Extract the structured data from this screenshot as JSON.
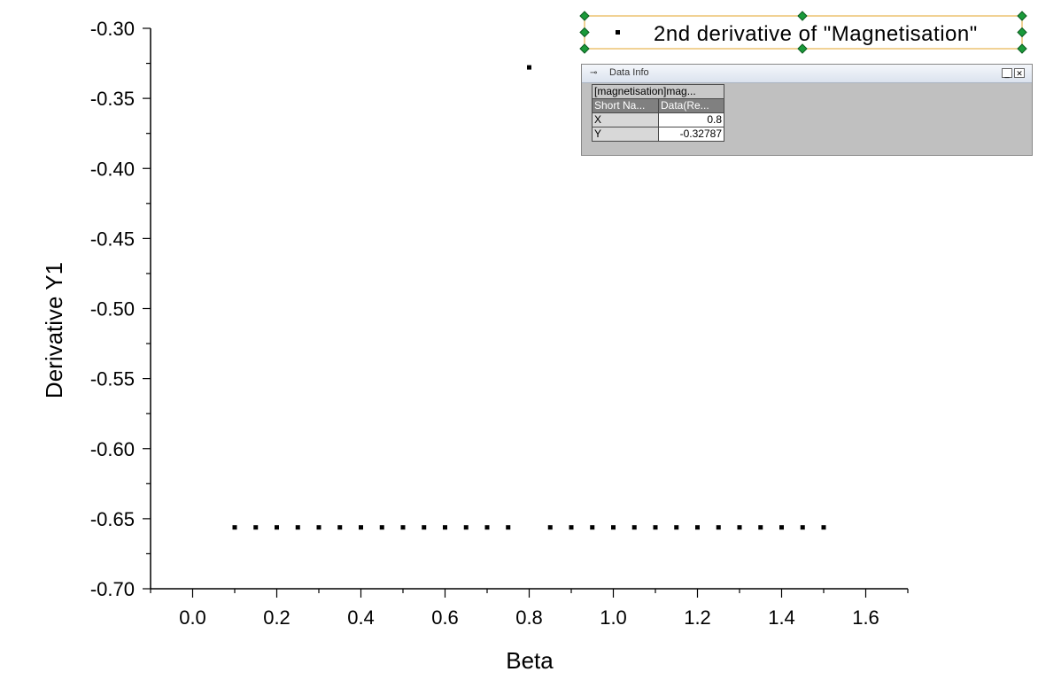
{
  "chart_data": {
    "type": "scatter",
    "xlabel": "Beta",
    "ylabel": "Derivative Y1",
    "xlim": [
      -0.1,
      1.7
    ],
    "ylim": [
      -0.7,
      -0.3
    ],
    "xticks": [
      "0.0",
      "0.2",
      "0.4",
      "0.6",
      "0.8",
      "1.0",
      "1.2",
      "1.4",
      "1.6"
    ],
    "yticks": [
      "-0.30",
      "-0.35",
      "-0.40",
      "-0.45",
      "-0.50",
      "-0.55",
      "-0.60",
      "-0.65",
      "-0.70"
    ],
    "series": [
      {
        "name": "2nd derivative of \"Magnetisation\"",
        "color": "#000000",
        "x": [
          0.1,
          0.15,
          0.2,
          0.25,
          0.3,
          0.35,
          0.4,
          0.45,
          0.5,
          0.55,
          0.6,
          0.65,
          0.7,
          0.75,
          0.8,
          0.85,
          0.9,
          0.95,
          1.0,
          1.05,
          1.1,
          1.15,
          1.2,
          1.25,
          1.3,
          1.35,
          1.4,
          1.45,
          1.5
        ],
        "y": [
          -0.6562,
          -0.6562,
          -0.6562,
          -0.6562,
          -0.6562,
          -0.6562,
          -0.6562,
          -0.6562,
          -0.6562,
          -0.6562,
          -0.6562,
          -0.6562,
          -0.6562,
          -0.6562,
          -0.32787,
          -0.6562,
          -0.6562,
          -0.6562,
          -0.6562,
          -0.6562,
          -0.6562,
          -0.6562,
          -0.6562,
          -0.6562,
          -0.6562,
          -0.6562,
          -0.6562,
          -0.6562,
          -0.6562
        ]
      }
    ],
    "legend_position": "top-right"
  },
  "data_info": {
    "title": "Data Info",
    "source": "[magnetisation]mag...",
    "col_short_name": "Short Na...",
    "col_data": "Data(Re...",
    "rows": [
      {
        "label": "X",
        "value": "0.8"
      },
      {
        "label": "Y",
        "value": "-0.32787"
      }
    ]
  }
}
